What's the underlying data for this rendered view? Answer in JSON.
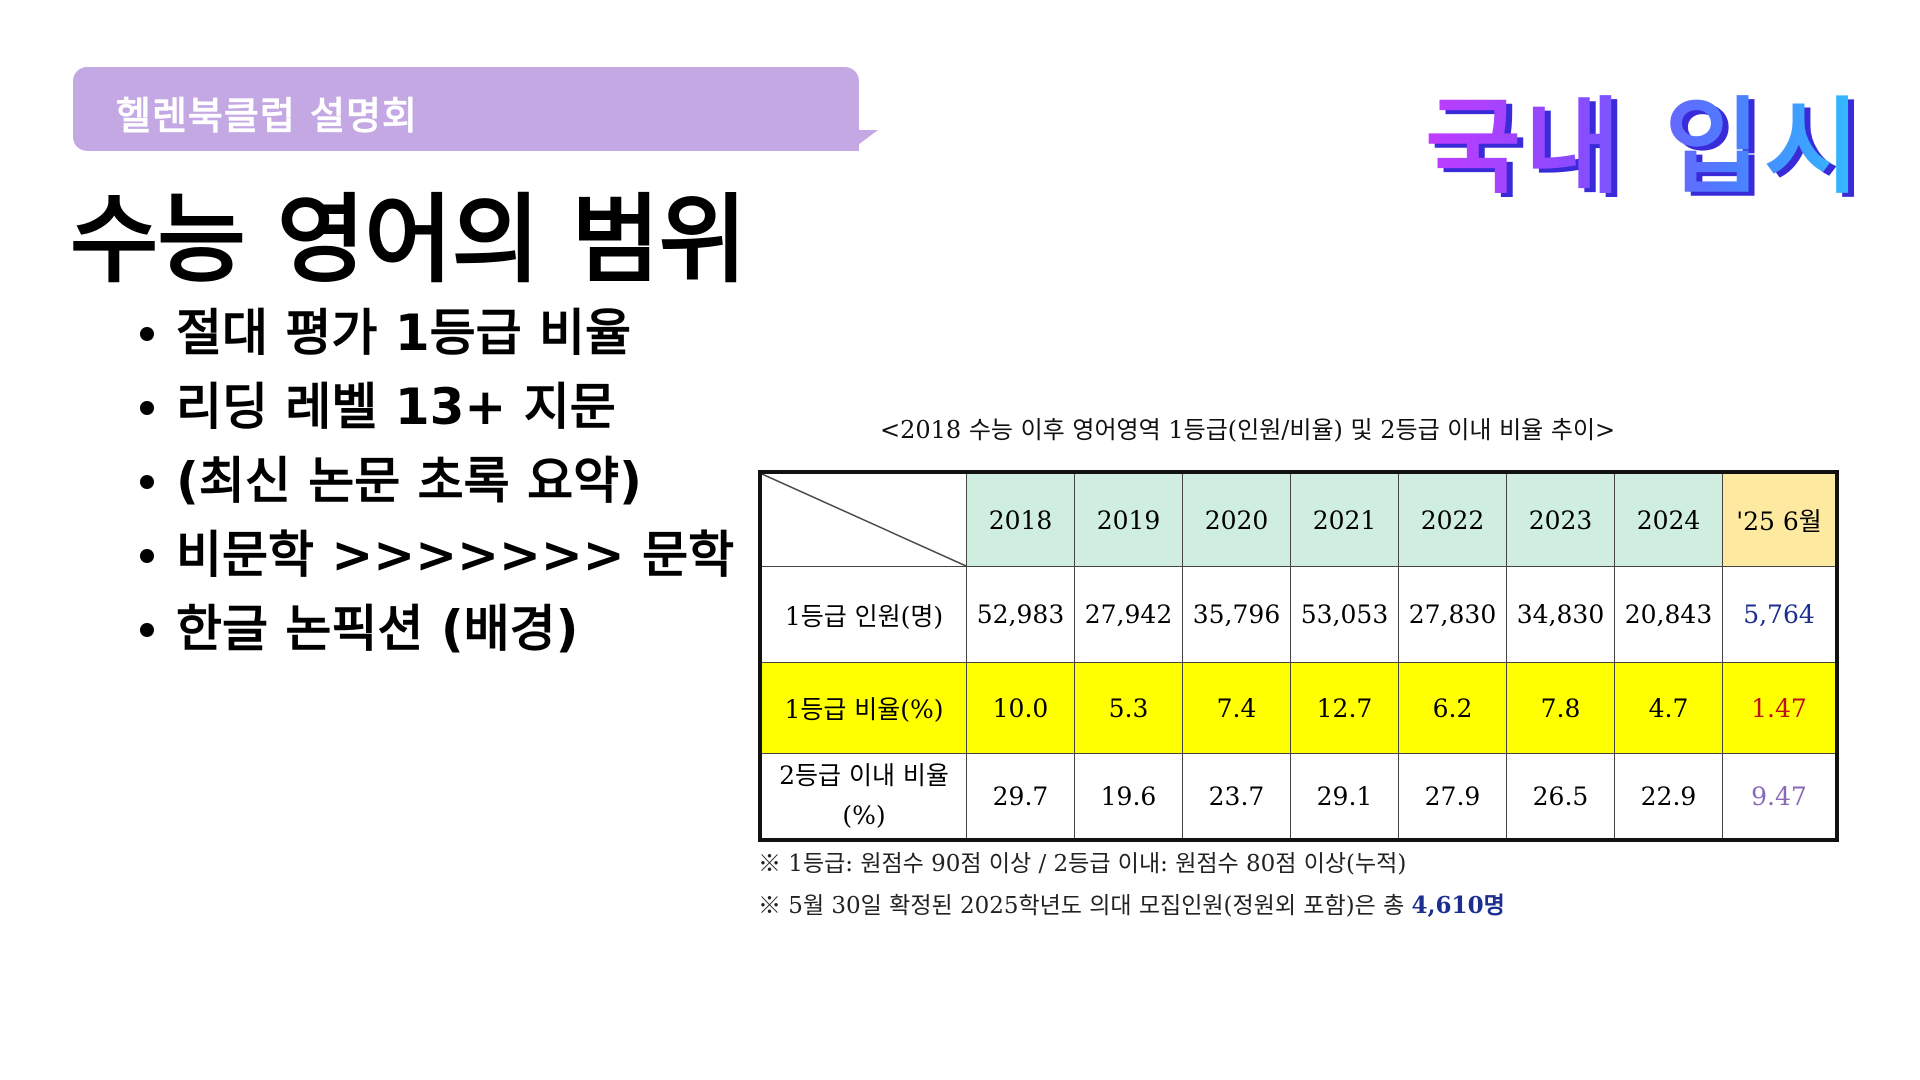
{
  "header": {
    "tag": "헬렌북클럽 설명회",
    "brand": "국내 입시",
    "title": "수능 영어의 범위"
  },
  "bullets": [
    "절대 평가 1등급 비율",
    "리딩 레벨 13+ 지문",
    "(최신 논문 초록 요약)",
    "비문학 >>>>>>> 문학",
    "한글 논픽션 (배경)"
  ],
  "table": {
    "caption": "<2018 수능 이후 영어영역 1등급(인원/비율) 및 2등급 이내 비율 추이>",
    "columns": [
      "2018",
      "2019",
      "2020",
      "2021",
      "2022",
      "2023",
      "2024",
      "'25 6월"
    ],
    "rows": [
      {
        "label": "1등급 인원(명)",
        "values": [
          "52,983",
          "27,942",
          "35,796",
          "53,053",
          "27,830",
          "34,830",
          "20,843",
          "5,764"
        ]
      },
      {
        "label": "1등급 비율(%)",
        "values": [
          "10.0",
          "5.3",
          "7.4",
          "12.7",
          "6.2",
          "7.8",
          "4.7",
          "1.47"
        ]
      },
      {
        "label": "2등급 이내 비율(%)",
        "values": [
          "29.7",
          "19.6",
          "23.7",
          "29.1",
          "27.9",
          "26.5",
          "22.9",
          "9.47"
        ]
      }
    ],
    "note1": "※ 1등급: 원점수 90점 이상 / 2등급 이내: 원점수 80점 이상(누적)",
    "note2_prefix": "※ 5월 30일 확정된 2025학년도 의대 모집인원(정원외 포함)은 총",
    "note2_highlight": "4,610명"
  },
  "colors": {
    "tag_bg": "#c3a8e3",
    "year_header_bg": "#cfeee0",
    "last_header_bg": "#fde9a0",
    "highlight_row_bg": "#ffff00",
    "value_blue": "#1c2f8f",
    "value_red": "#c0101a",
    "value_purple": "#8a6ab8"
  }
}
